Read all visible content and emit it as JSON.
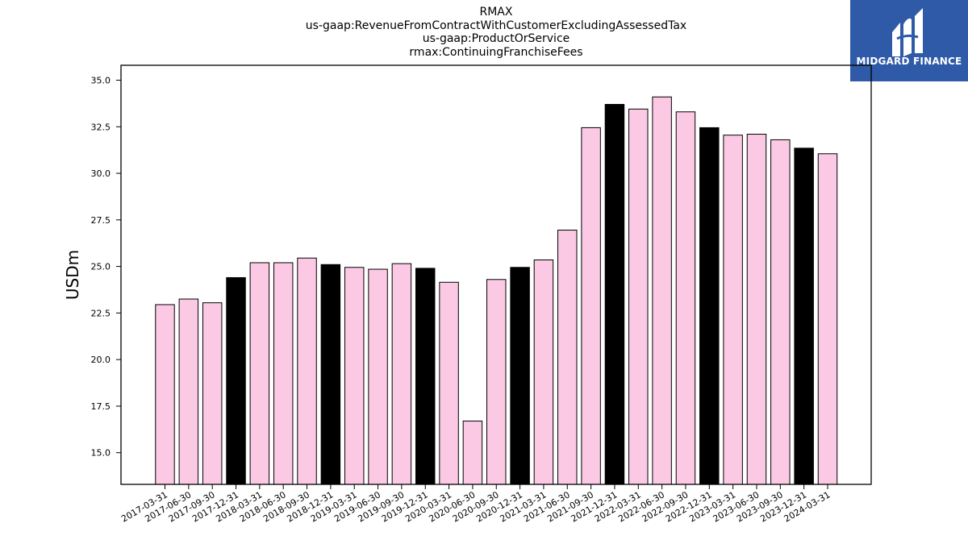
{
  "chart_data": {
    "type": "bar",
    "title_lines": [
      "RMAX",
      "us-gaap:RevenueFromContractWithCustomerExcludingAssessedTax",
      "us-gaap:ProductOrService",
      "rmax:ContinuingFranchiseFees"
    ],
    "ylabel": "USDm",
    "xlabel": "",
    "ylim": [
      13.3,
      35.8
    ],
    "yticks": [
      "15.0",
      "17.5",
      "20.0",
      "22.5",
      "25.0",
      "27.5",
      "30.0",
      "32.5",
      "35.0"
    ],
    "grid": false,
    "categories": [
      "2017-03-31",
      "2017-06-30",
      "2017-09-30",
      "2017-12-31",
      "2018-03-31",
      "2018-06-30",
      "2018-09-30",
      "2018-12-31",
      "2019-03-31",
      "2019-06-30",
      "2019-09-30",
      "2019-12-31",
      "2020-03-31",
      "2020-06-30",
      "2020-09-30",
      "2020-12-31",
      "2021-03-31",
      "2021-06-30",
      "2021-09-30",
      "2021-12-31",
      "2022-03-31",
      "2022-06-30",
      "2022-09-30",
      "2022-12-31",
      "2023-03-31",
      "2023-06-30",
      "2023-09-30",
      "2023-12-31",
      "2024-03-31"
    ],
    "values": [
      22.95,
      23.25,
      23.05,
      24.4,
      25.2,
      25.2,
      25.45,
      25.1,
      24.95,
      24.85,
      25.15,
      24.9,
      24.15,
      16.7,
      24.3,
      24.95,
      25.35,
      26.95,
      32.45,
      33.7,
      33.45,
      34.1,
      33.3,
      32.45,
      32.05,
      32.1,
      31.8,
      31.35,
      31.05
    ],
    "bar_colors": [
      "#fbc9e3",
      "#fbc9e3",
      "#fbc9e3",
      "#000000",
      "#fbc9e3",
      "#fbc9e3",
      "#fbc9e3",
      "#000000",
      "#fbc9e3",
      "#fbc9e3",
      "#fbc9e3",
      "#000000",
      "#fbc9e3",
      "#fbc9e3",
      "#fbc9e3",
      "#000000",
      "#fbc9e3",
      "#fbc9e3",
      "#fbc9e3",
      "#000000",
      "#fbc9e3",
      "#fbc9e3",
      "#fbc9e3",
      "#000000",
      "#fbc9e3",
      "#fbc9e3",
      "#fbc9e3",
      "#000000",
      "#fbc9e3"
    ]
  },
  "logo": {
    "text": "MIDGARD FINANCE",
    "background": "#2f5aa8"
  }
}
